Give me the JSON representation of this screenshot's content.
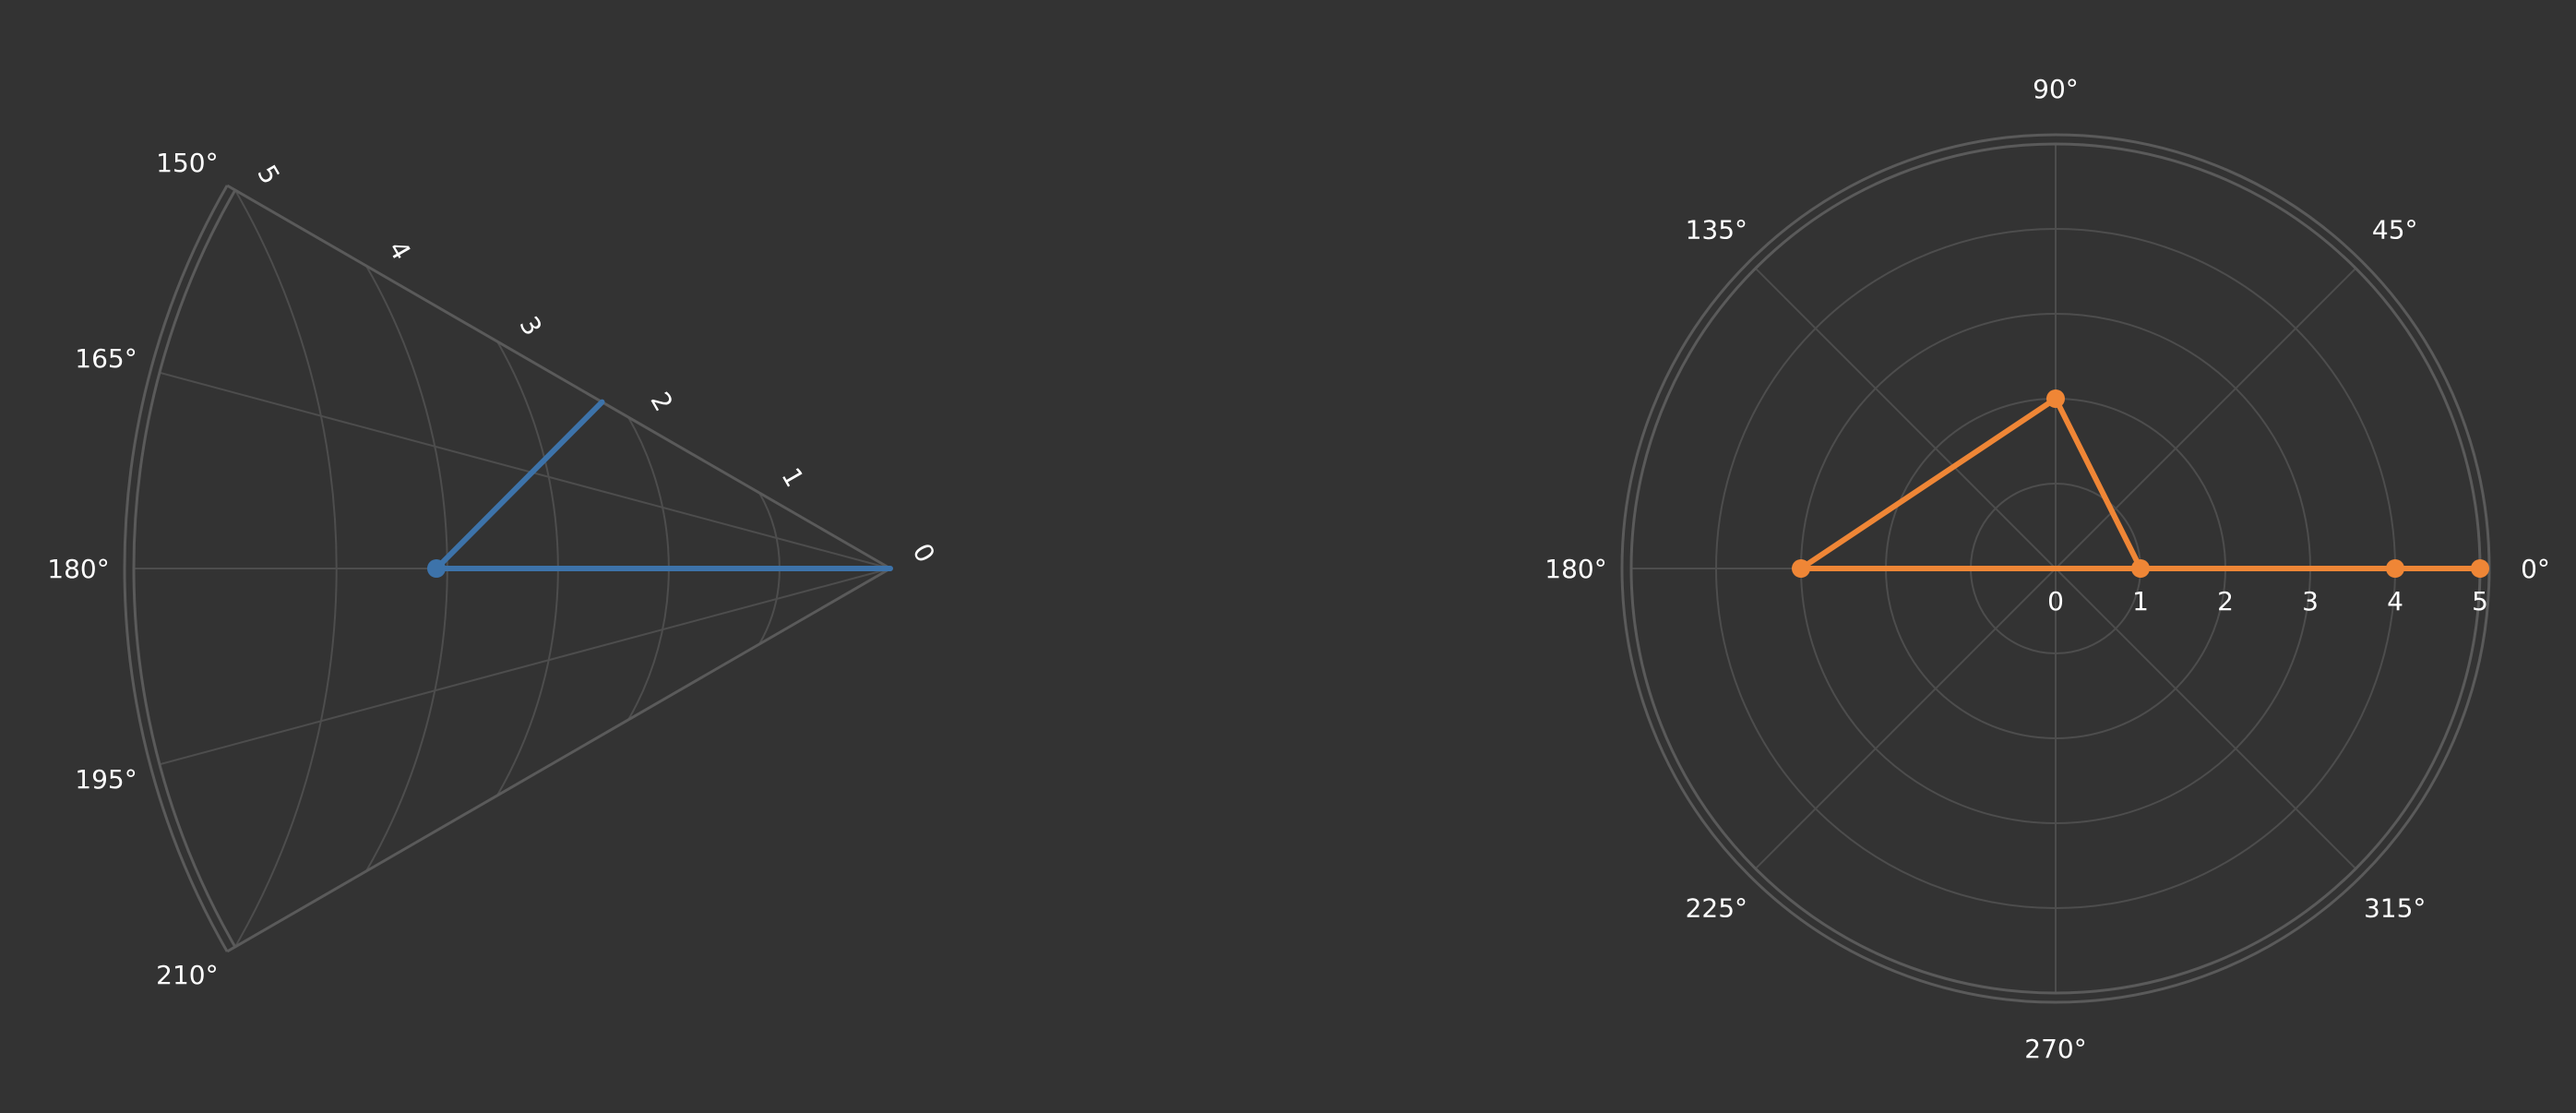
{
  "theme": {
    "background": "#333333",
    "grid_color": "#4d4d4d",
    "outline_color": "#5a5a5a",
    "text_color": "#ffffff"
  },
  "chart_data": [
    {
      "type": "line",
      "polar": true,
      "sector_deg": [
        150,
        210
      ],
      "radial_range": [
        0,
        5
      ],
      "radial_ticks": [
        "0",
        "1",
        "2",
        "3",
        "4",
        "5"
      ],
      "angular_ticks": [
        "150°",
        "165°",
        "180°",
        "195°",
        "210°"
      ],
      "angular_tick_values_deg": [
        150,
        165,
        180,
        195,
        210
      ],
      "grid": true,
      "series": [
        {
          "color": "#3d73aa",
          "r": [
            0,
            3,
            2.2
          ],
          "theta_deg": [
            0,
            180,
            150
          ],
          "markers": [
            false,
            true,
            false
          ]
        }
      ]
    },
    {
      "type": "line",
      "polar": true,
      "sector_deg": [
        0,
        360
      ],
      "radial_range": [
        0,
        5
      ],
      "radial_ticks": [
        "0",
        "1",
        "2",
        "3",
        "4",
        "5"
      ],
      "angular_ticks": [
        "0°",
        "45°",
        "90°",
        "135°",
        "180°",
        "225°",
        "270°",
        "315°"
      ],
      "angular_tick_values_deg": [
        0,
        45,
        90,
        135,
        180,
        225,
        270,
        315
      ],
      "grid": true,
      "series": [
        {
          "color": "#ef8636",
          "r": [
            0,
            1,
            2,
            3,
            4,
            5,
            0
          ],
          "theta_deg": [
            0,
            0,
            90,
            180,
            0,
            0,
            0
          ],
          "markers": [
            false,
            true,
            true,
            true,
            true,
            true,
            false
          ]
        }
      ]
    }
  ]
}
